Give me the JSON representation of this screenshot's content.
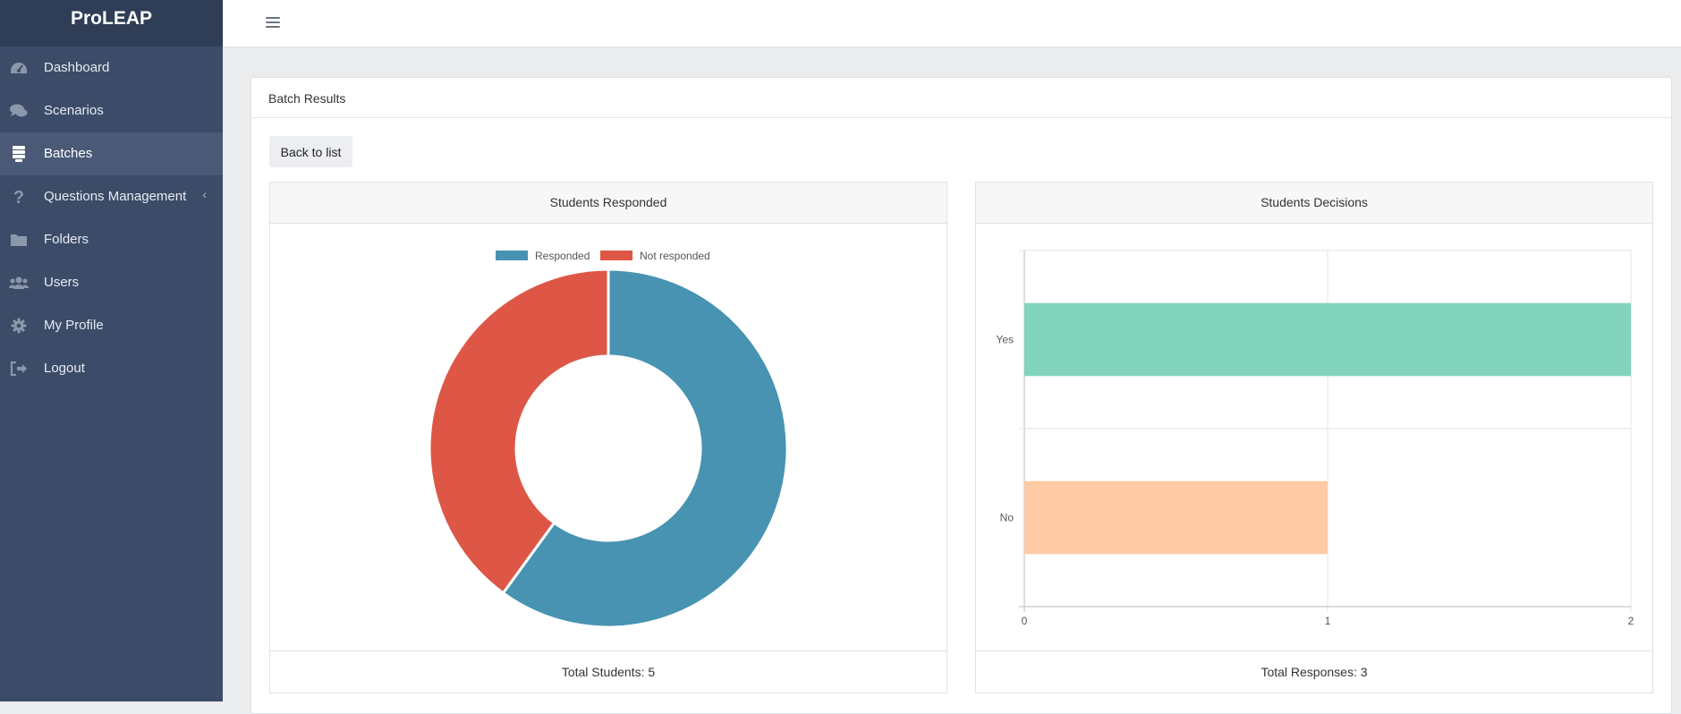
{
  "app": {
    "brand": "ProLEAP"
  },
  "sidebar": {
    "items": [
      {
        "label": "Dashboard",
        "icon": "dashboard-icon",
        "active": false
      },
      {
        "label": "Scenarios",
        "icon": "chat-bubbles-icon",
        "active": false
      },
      {
        "label": "Batches",
        "icon": "list-icon",
        "active": true
      },
      {
        "label": "Questions Management",
        "icon": "question-icon",
        "active": false,
        "has_submenu": true
      },
      {
        "label": "Folders",
        "icon": "folder-icon",
        "active": false
      },
      {
        "label": "Users",
        "icon": "users-icon",
        "active": false
      },
      {
        "label": "My Profile",
        "icon": "gear-icon",
        "active": false
      },
      {
        "label": "Logout",
        "icon": "logout-icon",
        "active": false
      }
    ]
  },
  "panel": {
    "title": "Batch Results",
    "back_label": "Back to list"
  },
  "charts": {
    "responded": {
      "header": "Students Responded",
      "footer": "Total Students: 5"
    },
    "decisions": {
      "header": "Students Decisions",
      "footer": "Total Responses: 3"
    }
  },
  "colors": {
    "sidebar_bg": "#3c4c68",
    "responded": "#4793b1",
    "not_responded": "#de5746",
    "yes": "#82d5bc",
    "no": "#fecba4"
  },
  "chart_data": [
    {
      "type": "pie",
      "subtype": "doughnut",
      "title": "Students Responded",
      "labels": [
        "Responded",
        "Not responded"
      ],
      "values": [
        3,
        2
      ],
      "legend": "top"
    },
    {
      "type": "bar",
      "orientation": "horizontal",
      "title": "Students Decisions",
      "categories": [
        "Yes",
        "No"
      ],
      "values": [
        2,
        1
      ],
      "xlim": [
        0,
        2
      ],
      "xticks": [
        0,
        1,
        2
      ],
      "grid": true,
      "legend": "none"
    }
  ]
}
